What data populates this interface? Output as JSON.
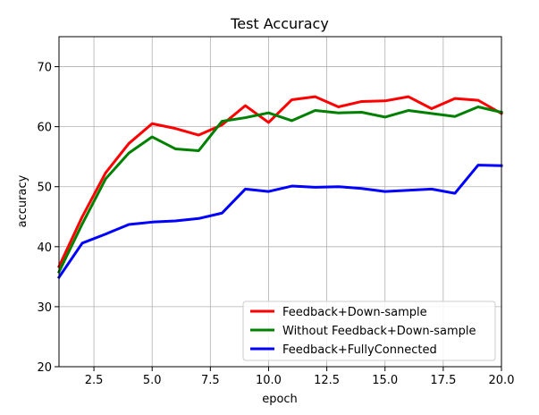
{
  "chart_data": {
    "type": "line",
    "title": "Test Accuracy",
    "xlabel": "epoch",
    "ylabel": "accuracy",
    "xlim": [
      1,
      20
    ],
    "ylim": [
      20,
      75
    ],
    "x_ticks": [
      2.5,
      5.0,
      7.5,
      10.0,
      12.5,
      15.0,
      17.5,
      20.0
    ],
    "x_tick_labels": [
      "2.5",
      "5.0",
      "7.5",
      "10.0",
      "12.5",
      "15.0",
      "17.5",
      "20.0"
    ],
    "y_ticks": [
      20,
      30,
      40,
      50,
      60,
      70
    ],
    "y_tick_labels": [
      "20",
      "30",
      "40",
      "50",
      "60",
      "70"
    ],
    "grid": true,
    "legend_position": "bottom-right",
    "x": [
      1,
      2,
      3,
      4,
      5,
      6,
      7,
      8,
      9,
      10,
      11,
      12,
      13,
      14,
      15,
      16,
      17,
      18,
      19,
      20
    ],
    "series": [
      {
        "name": "Feedback+Down-sample",
        "color": "#ff0000",
        "values": [
          36.7,
          45.0,
          52.3,
          57.2,
          60.5,
          59.7,
          58.6,
          60.3,
          63.5,
          60.7,
          64.5,
          65.0,
          63.3,
          64.2,
          64.3,
          65.0,
          63.0,
          64.7,
          64.4,
          62.2
        ]
      },
      {
        "name": "Without Feedback+Down-sample",
        "color": "#008000",
        "values": [
          35.8,
          43.8,
          51.3,
          55.6,
          58.3,
          56.3,
          56.0,
          60.9,
          61.5,
          62.3,
          61.0,
          62.7,
          62.3,
          62.4,
          61.6,
          62.7,
          62.2,
          61.7,
          63.3,
          62.4
        ]
      },
      {
        "name": "Feedback+FullyConnected",
        "color": "#0000ff",
        "values": [
          34.9,
          40.6,
          42.1,
          43.7,
          44.1,
          44.3,
          44.7,
          45.6,
          49.6,
          49.2,
          50.1,
          49.9,
          50.0,
          49.7,
          49.2,
          49.4,
          49.6,
          48.9,
          53.6,
          53.5
        ]
      }
    ]
  }
}
